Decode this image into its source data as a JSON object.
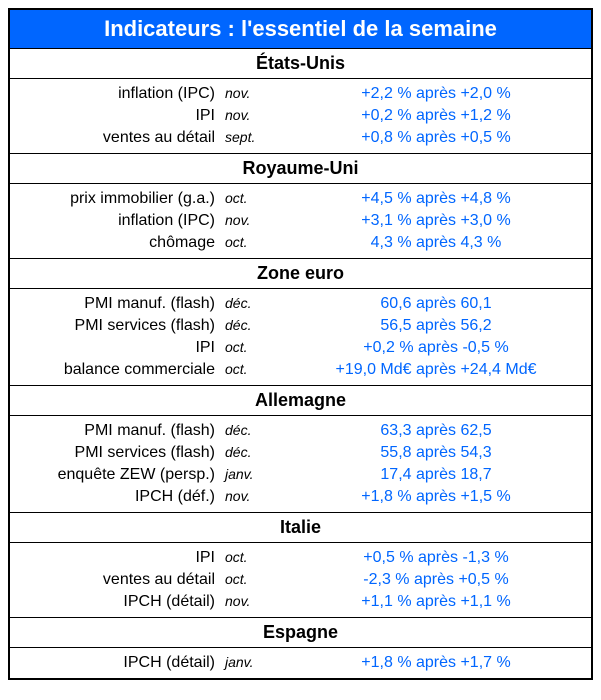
{
  "title": "Indicateurs : l'essentiel de la semaine",
  "colors": {
    "header_bg": "#0066ff",
    "header_text": "#ffffff",
    "value_text": "#0066ff",
    "label_text": "#000000",
    "border": "#000000",
    "background": "#ffffff"
  },
  "typography": {
    "title_fontsize": 22,
    "section_fontsize": 18,
    "row_fontsize": 16,
    "period_fontsize": 14,
    "font_family": "Arial"
  },
  "sections": [
    {
      "name": "États-Unis",
      "rows": [
        {
          "indicator": "inflation (IPC)",
          "period": "nov.",
          "value": "+2,2 % après +2,0 %"
        },
        {
          "indicator": "IPI",
          "period": "nov.",
          "value": "+0,2 % après +1,2 %"
        },
        {
          "indicator": "ventes au détail",
          "period": "sept.",
          "value": "+0,8 % après +0,5 %"
        }
      ]
    },
    {
      "name": "Royaume-Uni",
      "rows": [
        {
          "indicator": "prix immobilier (g.a.)",
          "period": "oct.",
          "value": "+4,5 % après +4,8 %"
        },
        {
          "indicator": "inflation (IPC)",
          "period": "nov.",
          "value": "+3,1 % après +3,0 %"
        },
        {
          "indicator": "chômage",
          "period": "oct.",
          "value": "4,3 % après 4,3 %"
        }
      ]
    },
    {
      "name": "Zone euro",
      "rows": [
        {
          "indicator": "PMI manuf. (flash)",
          "period": "déc.",
          "value": "60,6 après 60,1"
        },
        {
          "indicator": "PMI services (flash)",
          "period": "déc.",
          "value": "56,5 après 56,2"
        },
        {
          "indicator": "IPI",
          "period": "oct.",
          "value": "+0,2 % après -0,5 %"
        },
        {
          "indicator": "balance commerciale",
          "period": "oct.",
          "value": "+19,0 Md€ après +24,4 Md€"
        }
      ]
    },
    {
      "name": "Allemagne",
      "rows": [
        {
          "indicator": "PMI manuf. (flash)",
          "period": "déc.",
          "value": "63,3 après 62,5"
        },
        {
          "indicator": "PMI services (flash)",
          "period": "déc.",
          "value": "55,8 après 54,3"
        },
        {
          "indicator": "enquête ZEW (persp.)",
          "period": "janv.",
          "value": "17,4 après 18,7"
        },
        {
          "indicator": "IPCH (déf.)",
          "period": "nov.",
          "value": "+1,8 % après +1,5 %"
        }
      ]
    },
    {
      "name": "Italie",
      "rows": [
        {
          "indicator": "IPI",
          "period": "oct.",
          "value": "+0,5 % après -1,3 %"
        },
        {
          "indicator": "ventes au détail",
          "period": "oct.",
          "value": "-2,3 % après +0,5 %"
        },
        {
          "indicator": "IPCH (détail)",
          "period": "nov.",
          "value": "+1,1 % après +1,1 %"
        }
      ]
    },
    {
      "name": "Espagne",
      "rows": [
        {
          "indicator": "IPCH (détail)",
          "period": "janv.",
          "value": "+1,8 % après +1,7 %"
        }
      ]
    }
  ]
}
